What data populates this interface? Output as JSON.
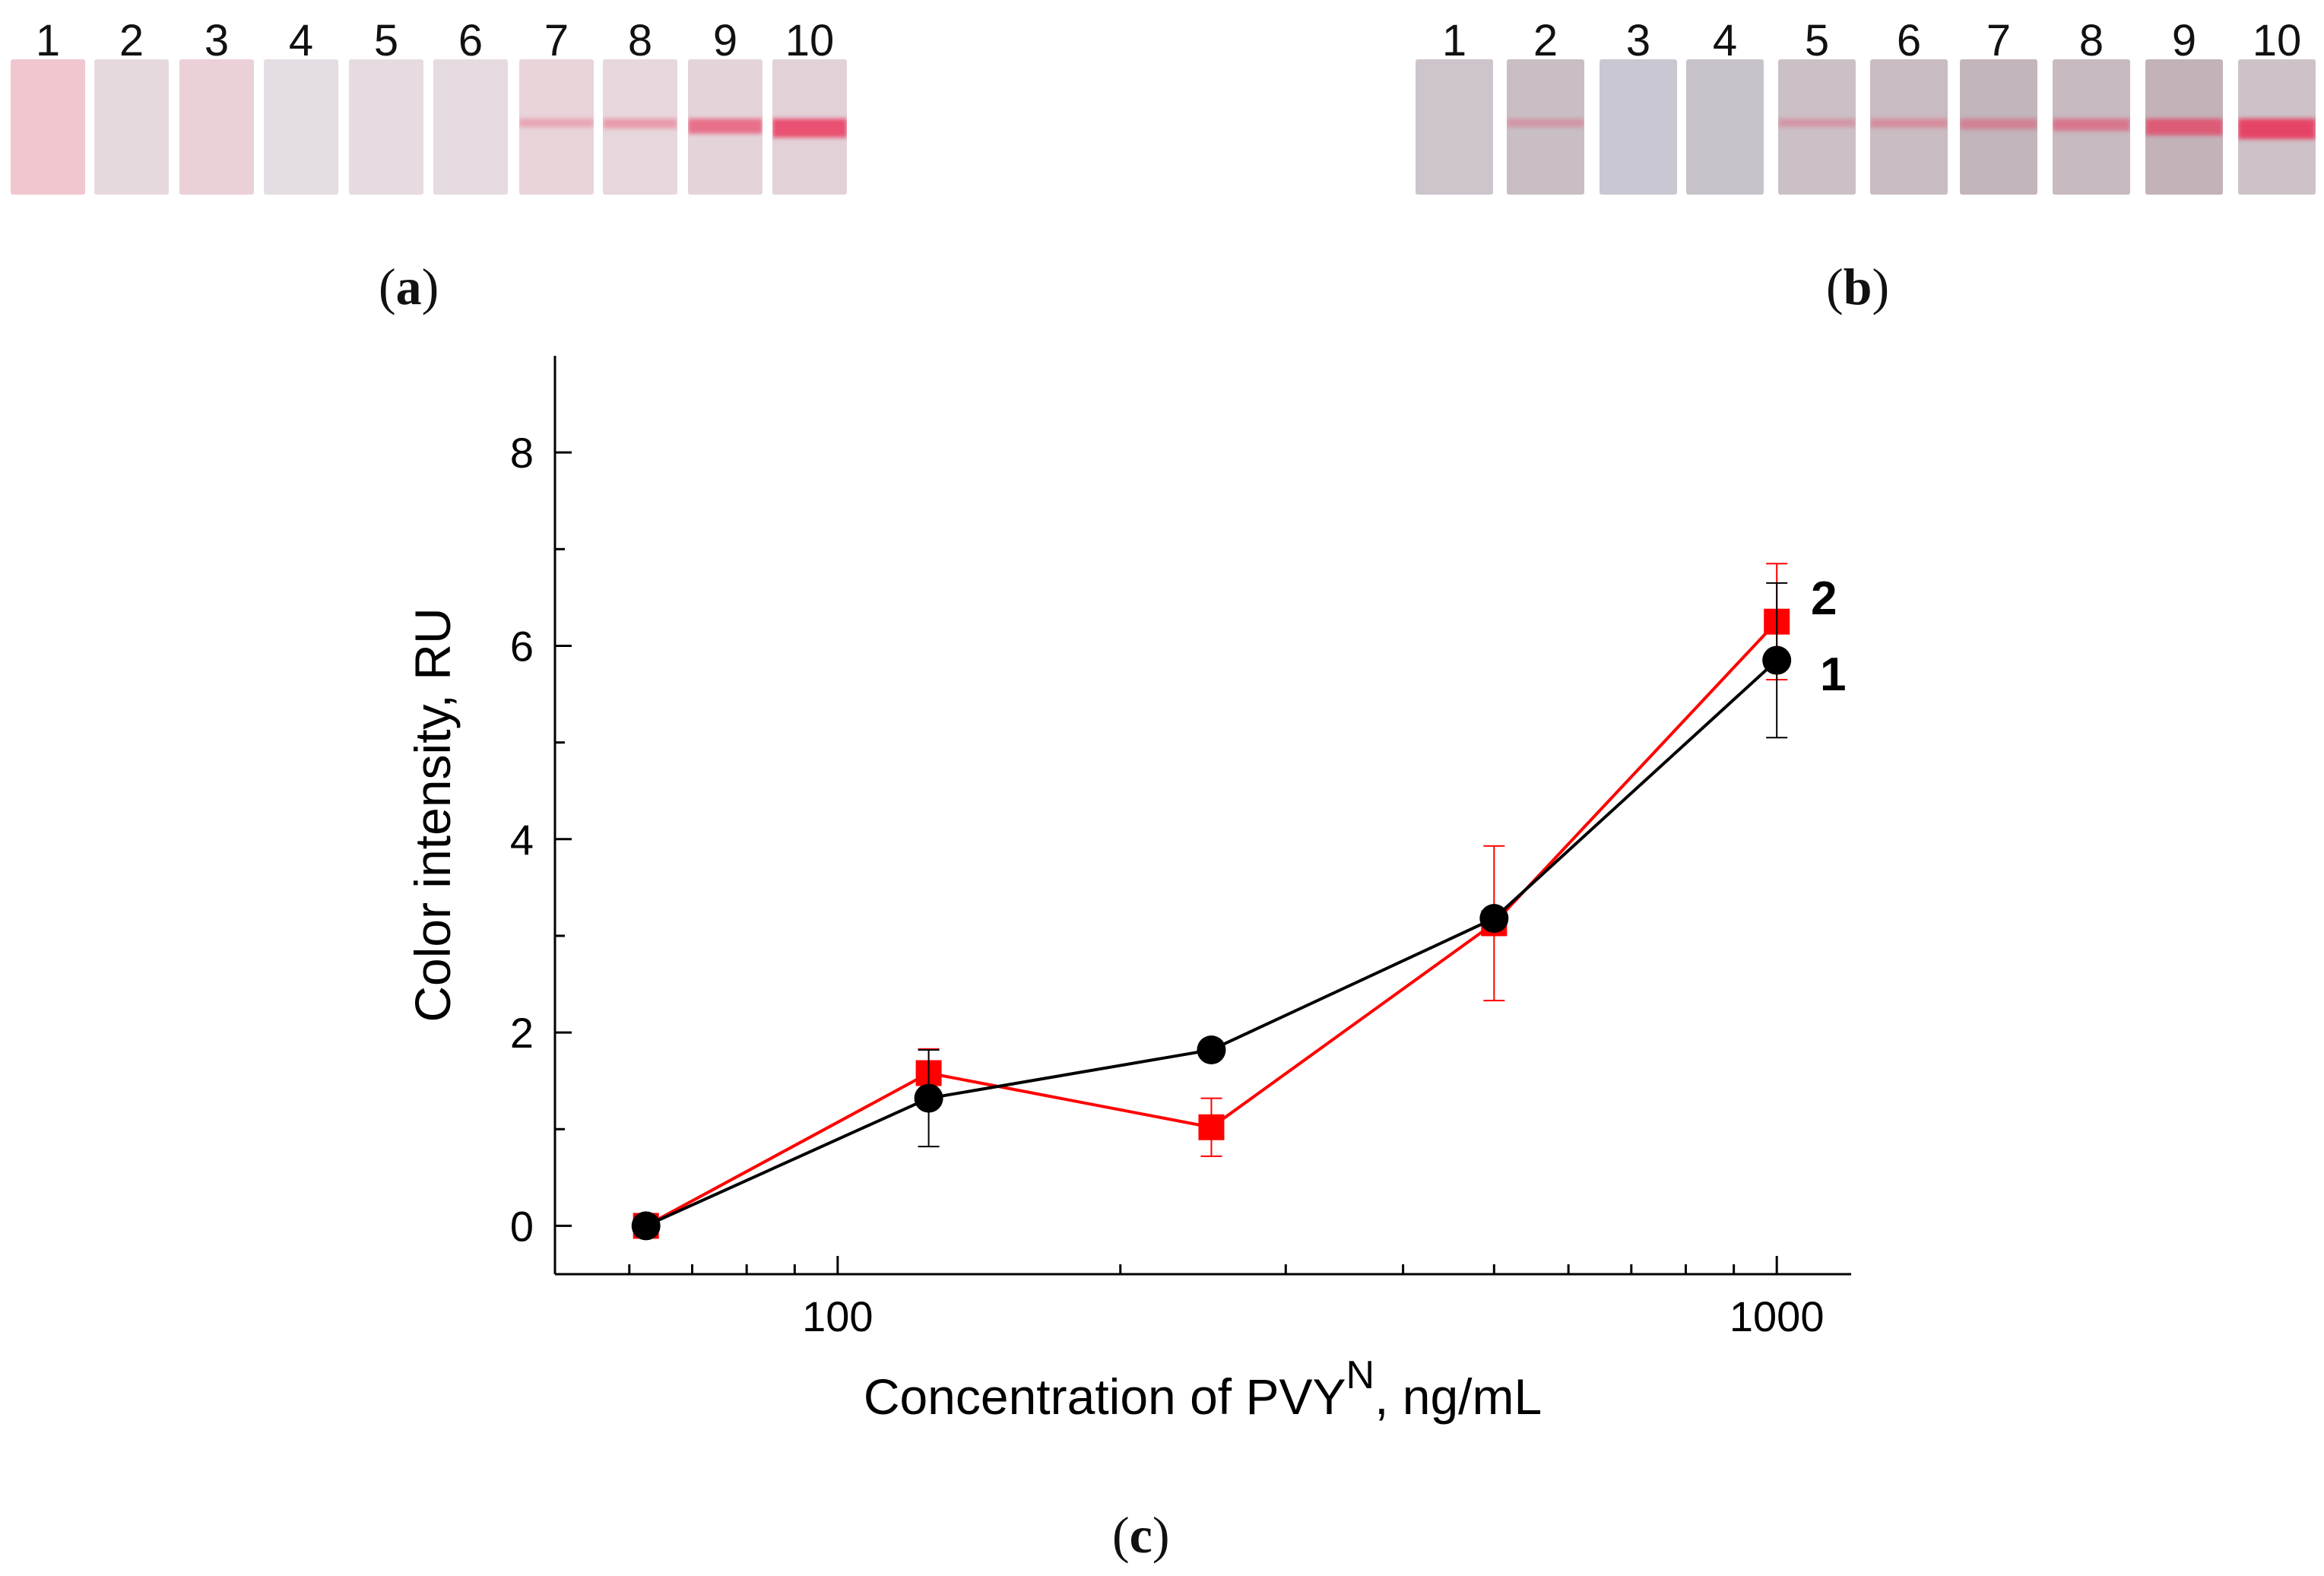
{
  "panels": {
    "a": {
      "open": "(",
      "letter": "a",
      "close": ")",
      "strips": [
        {
          "label": "1",
          "tint": "#f1c7cf",
          "line": 0.0
        },
        {
          "label": "2",
          "tint": "#e6d9de",
          "line": 0.0
        },
        {
          "label": "3",
          "tint": "#ebd0d7",
          "line": 0.0
        },
        {
          "label": "4",
          "tint": "#e4dde3",
          "line": 0.0
        },
        {
          "label": "5",
          "tint": "#e6dbe0",
          "line": 0.0
        },
        {
          "label": "6",
          "tint": "#e6dbe0",
          "line": 0.0
        },
        {
          "label": "7",
          "tint": "#e9d4da",
          "line": 0.05
        },
        {
          "label": "8",
          "tint": "#e7d7dc",
          "line": 0.15
        },
        {
          "label": "9",
          "tint": "#e4d4da",
          "line": 0.55
        },
        {
          "label": "10",
          "tint": "#e2d2d8",
          "line": 0.85
        }
      ]
    },
    "b": {
      "open": "(",
      "letter": "b",
      "close": ")",
      "strips": [
        {
          "label": "1",
          "tint": "#cdc4cc",
          "line": 0.0
        },
        {
          "label": "2",
          "tint": "#c9bec4",
          "line": 0.03
        },
        {
          "label": "3",
          "tint": "#c9c8d2",
          "line": 0.0
        },
        {
          "label": "4",
          "tint": "#c8c3cb",
          "line": 0.0
        },
        {
          "label": "5",
          "tint": "#ccc0c7",
          "line": 0.05
        },
        {
          "label": "6",
          "tint": "#c9bcc2",
          "line": 0.12
        },
        {
          "label": "7",
          "tint": "#c2b5bb",
          "line": 0.2
        },
        {
          "label": "8",
          "tint": "#c7bac0",
          "line": 0.35
        },
        {
          "label": "9",
          "tint": "#c3b3b9",
          "line": 0.65
        },
        {
          "label": "10",
          "tint": "#cdc2c8",
          "line": 0.95
        }
      ]
    },
    "c": {
      "open": "(",
      "letter": "c",
      "close": ")"
    }
  },
  "chart_data": {
    "type": "line",
    "x_scale": "log",
    "xlim": [
      50,
      1200
    ],
    "ylim": [
      -0.5,
      9
    ],
    "x_ticks": [
      100,
      1000
    ],
    "x_tick_labels": [
      "100",
      "1000"
    ],
    "y_ticks": [
      0,
      2,
      4,
      6,
      8
    ],
    "y_tick_labels": [
      "0",
      "2",
      "4",
      "6",
      "8"
    ],
    "xlabel_main": "Concentration of PVY",
    "xlabel_sup": "N",
    "xlabel_tail": ", ng/mL",
    "ylabel": "Color intensity, RU",
    "series": [
      {
        "name": "1",
        "color": "#000000",
        "marker": "circle",
        "x": [
          62.5,
          125,
          250,
          500,
          1000
        ],
        "y": [
          0,
          1.32,
          1.82,
          3.18,
          5.85
        ],
        "err": [
          0.02,
          0.5,
          0.05,
          0.05,
          0.8
        ]
      },
      {
        "name": "2",
        "color": "#ff0000",
        "marker": "square",
        "x": [
          62.5,
          125,
          250,
          500,
          1000
        ],
        "y": [
          0,
          1.58,
          1.02,
          3.13,
          6.25
        ],
        "err": [
          0.02,
          0.25,
          0.3,
          0.8,
          0.6
        ]
      }
    ]
  }
}
